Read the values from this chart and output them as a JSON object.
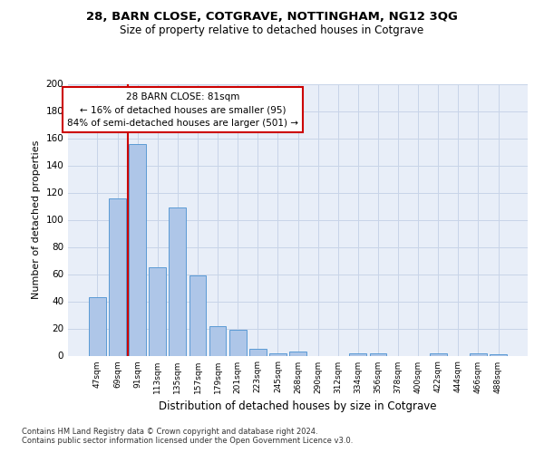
{
  "title1": "28, BARN CLOSE, COTGRAVE, NOTTINGHAM, NG12 3QG",
  "title2": "Size of property relative to detached houses in Cotgrave",
  "xlabel": "Distribution of detached houses by size in Cotgrave",
  "ylabel": "Number of detached properties",
  "footnote1": "Contains HM Land Registry data © Crown copyright and database right 2024.",
  "footnote2": "Contains public sector information licensed under the Open Government Licence v3.0.",
  "annotation_line1": "28 BARN CLOSE: 81sqm",
  "annotation_line2": "← 16% of detached houses are smaller (95)",
  "annotation_line3": "84% of semi-detached houses are larger (501) →",
  "bin_labels": [
    "47sqm",
    "69sqm",
    "91sqm",
    "113sqm",
    "135sqm",
    "157sqm",
    "179sqm",
    "201sqm",
    "223sqm",
    "245sqm",
    "268sqm",
    "290sqm",
    "312sqm",
    "334sqm",
    "356sqm",
    "378sqm",
    "400sqm",
    "422sqm",
    "444sqm",
    "466sqm",
    "488sqm"
  ],
  "bar_heights": [
    43,
    116,
    156,
    65,
    109,
    59,
    22,
    19,
    5,
    2,
    3,
    0,
    0,
    2,
    2,
    0,
    0,
    2,
    0,
    2,
    1
  ],
  "bar_color": "#aec6e8",
  "bar_edge_color": "#5b9bd5",
  "grid_color": "#c8d4e8",
  "bg_color": "#e8eef8",
  "annotation_box_color": "#cc0000",
  "vline_color": "#cc0000",
  "ylim": [
    0,
    200
  ],
  "yticks": [
    0,
    20,
    40,
    60,
    80,
    100,
    120,
    140,
    160,
    180,
    200
  ],
  "vline_x": 1.5
}
